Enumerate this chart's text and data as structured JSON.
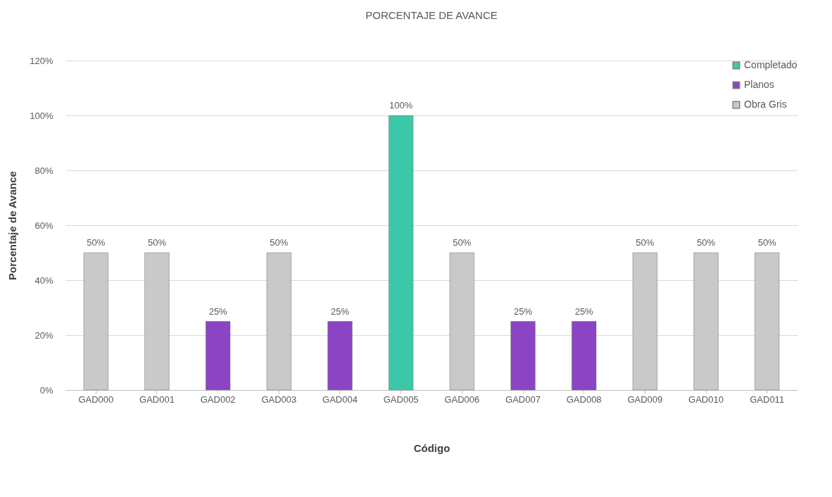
{
  "chart_data": {
    "type": "bar",
    "title": "PORCENTAJE DE AVANCE",
    "xlabel": "Código",
    "ylabel": "Porcentaje de Avance",
    "categories": [
      "GAD000",
      "GAD001",
      "GAD002",
      "GAD003",
      "GAD004",
      "GAD005",
      "GAD006",
      "GAD007",
      "GAD008",
      "GAD009",
      "GAD010",
      "GAD011"
    ],
    "series": [
      {
        "name": "Completado",
        "color": "#3cc8a8",
        "values": [
          null,
          null,
          null,
          null,
          null,
          100,
          null,
          null,
          null,
          null,
          null,
          null
        ],
        "value_labels": [
          null,
          null,
          null,
          null,
          null,
          "100%",
          null,
          null,
          null,
          null,
          null,
          null
        ]
      },
      {
        "name": "Planos",
        "color": "#8b44c4",
        "values": [
          null,
          null,
          25,
          null,
          25,
          null,
          null,
          25,
          25,
          null,
          null,
          null
        ],
        "value_labels": [
          null,
          null,
          "25%",
          null,
          "25%",
          null,
          null,
          "25%",
          "25%",
          null,
          null,
          null
        ]
      },
      {
        "name": "Obra Gris",
        "color": "#c9c9c9",
        "values": [
          50,
          50,
          null,
          50,
          null,
          null,
          50,
          null,
          null,
          50,
          50,
          50
        ],
        "value_labels": [
          "50%",
          "50%",
          null,
          "50%",
          null,
          null,
          "50%",
          null,
          null,
          "50%",
          "50%",
          "50%"
        ]
      }
    ],
    "ylim": [
      0,
      120
    ],
    "yticks": [
      {
        "value": 0,
        "label": "0%"
      },
      {
        "value": 20,
        "label": "20%"
      },
      {
        "value": 40,
        "label": "40%"
      },
      {
        "value": 60,
        "label": "60%"
      },
      {
        "value": 80,
        "label": "80%"
      },
      {
        "value": 100,
        "label": "100%"
      },
      {
        "value": 120,
        "label": "120%"
      }
    ],
    "grid": "y",
    "legend": "top right"
  }
}
